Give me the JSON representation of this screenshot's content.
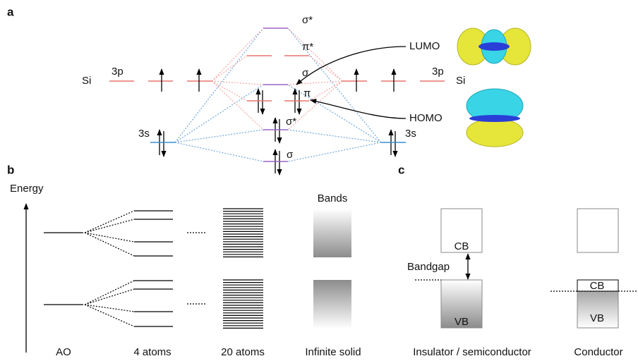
{
  "panels": {
    "a": {
      "label": "a",
      "left_atom": {
        "name": "Si",
        "p_orbital": "3p",
        "s_orbital": "3s"
      },
      "right_atom": {
        "name": "Si",
        "p_orbital": "3p",
        "s_orbital": "3s"
      },
      "mo_levels": [
        "σ*",
        "π*",
        "σ",
        "π",
        "σ*",
        "σ"
      ],
      "callouts": [
        "LUMO",
        "HOMO"
      ]
    },
    "b": {
      "label": "b",
      "axis_label": "Energy",
      "bands_label": "Bands",
      "columns": [
        "AO",
        "4 atoms",
        "20 atoms",
        "Infinite solid"
      ]
    },
    "c": {
      "label": "c",
      "insulator": {
        "cb": "CB",
        "gap": "Bandgap",
        "vb": "VB",
        "caption": "Insulator / semiconductor"
      },
      "conductor": {
        "cb": "CB",
        "vb": "VB",
        "caption": "Conductor"
      }
    }
  }
}
